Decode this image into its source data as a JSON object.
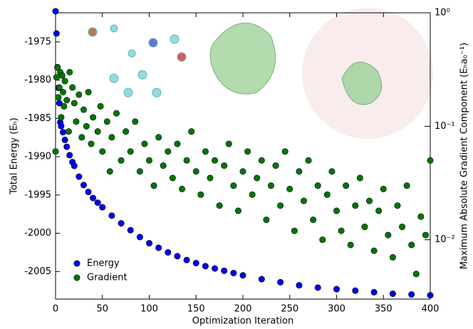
{
  "chart_data": {
    "type": "scatter",
    "xlabel": "Optimization Iteration",
    "ylabel": "Total Energy (Eₕ)",
    "y2label": "Maximum Absolute Gradient Component (Eₕa₀⁻¹)",
    "xlim": [
      0,
      400
    ],
    "xticks": [
      0,
      50,
      100,
      150,
      200,
      250,
      300,
      350,
      400
    ],
    "ylim": [
      -2008.6,
      -1971.2
    ],
    "yticks": [
      -2005,
      -2000,
      -1995,
      -1990,
      -1985,
      -1980,
      -1975
    ],
    "y2lim": [
      0.003,
      1
    ],
    "y2log": true,
    "y2ticks": [
      {
        "value": 0.01,
        "label": "10⁻²"
      },
      {
        "value": 0.1,
        "label": "10⁻¹"
      },
      {
        "value": 1,
        "label": "10⁰"
      }
    ],
    "legend": "lower left",
    "series": [
      {
        "name": "Energy",
        "color": "#0000ee",
        "x": [
          0,
          1,
          2,
          3,
          4,
          5,
          6,
          8,
          10,
          12,
          15,
          18,
          20,
          25,
          30,
          35,
          40,
          45,
          50,
          60,
          70,
          80,
          90,
          100,
          110,
          120,
          130,
          140,
          150,
          160,
          170,
          180,
          190,
          200,
          220,
          240,
          260,
          280,
          300,
          320,
          340,
          360,
          380,
          400
        ],
        "values": [
          -1971.0,
          -1973.9,
          -1978.3,
          -1981.0,
          -1983.0,
          -1985.5,
          -1986.0,
          -1986.8,
          -1987.8,
          -1988.7,
          -1989.8,
          -1990.7,
          -1991.2,
          -1992.6,
          -1993.7,
          -1994.6,
          -1995.4,
          -1996.0,
          -1996.6,
          -1997.7,
          -1998.7,
          -1999.6,
          -2000.5,
          -2001.3,
          -2001.9,
          -2002.5,
          -2003.0,
          -2003.5,
          -2003.9,
          -2004.3,
          -2004.6,
          -2004.9,
          -2005.2,
          -2005.5,
          -2006.0,
          -2006.4,
          -2006.8,
          -2007.1,
          -2007.3,
          -2007.5,
          -2007.7,
          -2007.9,
          -2008.0,
          -2008.1
        ]
      },
      {
        "name": "Gradient",
        "color": "#007700",
        "axis": "y2",
        "x": [
          0,
          1,
          2,
          3,
          4,
          5,
          6,
          7,
          8,
          9,
          10,
          12,
          14,
          15,
          18,
          20,
          22,
          25,
          28,
          30,
          33,
          35,
          38,
          40,
          45,
          48,
          50,
          55,
          58,
          60,
          65,
          70,
          75,
          80,
          85,
          90,
          95,
          100,
          105,
          110,
          115,
          120,
          125,
          130,
          135,
          140,
          145,
          150,
          155,
          160,
          165,
          170,
          175,
          180,
          185,
          190,
          195,
          200,
          205,
          210,
          215,
          220,
          225,
          230,
          235,
          240,
          245,
          250,
          255,
          260,
          265,
          270,
          275,
          280,
          285,
          290,
          295,
          300,
          305,
          310,
          315,
          320,
          325,
          330,
          335,
          340,
          345,
          350,
          355,
          360,
          365,
          370,
          375,
          380,
          385,
          390,
          395,
          400
        ],
        "values": [
          0.06,
          0.27,
          0.33,
          0.18,
          0.22,
          0.3,
          0.12,
          0.28,
          0.2,
          0.15,
          0.25,
          0.17,
          0.09,
          0.3,
          0.22,
          0.16,
          0.11,
          0.19,
          0.08,
          0.14,
          0.1,
          0.2,
          0.07,
          0.12,
          0.09,
          0.15,
          0.06,
          0.11,
          0.04,
          0.08,
          0.13,
          0.05,
          0.09,
          0.06,
          0.11,
          0.04,
          0.07,
          0.05,
          0.03,
          0.08,
          0.045,
          0.06,
          0.035,
          0.07,
          0.028,
          0.05,
          0.09,
          0.04,
          0.025,
          0.06,
          0.035,
          0.05,
          0.02,
          0.045,
          0.07,
          0.03,
          0.018,
          0.04,
          0.06,
          0.025,
          0.035,
          0.05,
          0.015,
          0.03,
          0.045,
          0.02,
          0.06,
          0.028,
          0.012,
          0.04,
          0.022,
          0.05,
          0.015,
          0.03,
          0.01,
          0.025,
          0.04,
          0.018,
          0.012,
          0.03,
          0.009,
          0.02,
          0.035,
          0.013,
          0.022,
          0.008,
          0.018,
          0.028,
          0.011,
          0.007,
          0.02,
          0.013,
          0.03,
          0.009,
          0.005,
          0.016,
          0.011,
          0.05
        ]
      }
    ]
  }
}
